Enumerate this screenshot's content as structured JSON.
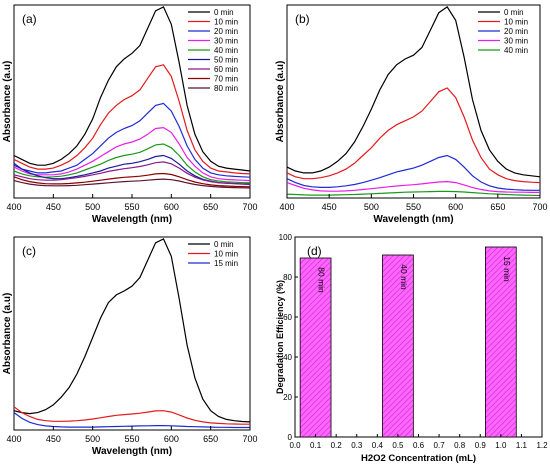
{
  "chart_data": [
    {
      "panel_label": "(a)",
      "type": "line",
      "xlabel": "Wavelength (nm)",
      "ylabel": "Absorbance (a.u)",
      "xlim": [
        400,
        700
      ],
      "x_ticks": [
        400,
        450,
        500,
        550,
        600,
        650,
        700
      ],
      "ylim": [
        0,
        1
      ],
      "y_ticks_shown": false,
      "legend_position": "top-right",
      "x": [
        400,
        410,
        420,
        430,
        440,
        450,
        460,
        470,
        480,
        490,
        500,
        510,
        520,
        530,
        540,
        550,
        560,
        570,
        580,
        590,
        600,
        610,
        620,
        630,
        640,
        650,
        660,
        670,
        680,
        690,
        700
      ],
      "series": [
        {
          "name": "0 min",
          "color": "#000000",
          "values": [
            0.22,
            0.2,
            0.18,
            0.17,
            0.17,
            0.18,
            0.2,
            0.23,
            0.27,
            0.33,
            0.41,
            0.52,
            0.61,
            0.68,
            0.72,
            0.75,
            0.79,
            0.88,
            0.97,
            0.99,
            0.9,
            0.7,
            0.48,
            0.33,
            0.24,
            0.19,
            0.165,
            0.155,
            0.15,
            0.145,
            0.14
          ]
        },
        {
          "name": "10 min",
          "color": "#e41a1c",
          "values": [
            0.2,
            0.18,
            0.16,
            0.15,
            0.15,
            0.155,
            0.17,
            0.19,
            0.22,
            0.26,
            0.31,
            0.38,
            0.44,
            0.48,
            0.51,
            0.53,
            0.56,
            0.62,
            0.68,
            0.69,
            0.63,
            0.5,
            0.35,
            0.25,
            0.19,
            0.155,
            0.14,
            0.135,
            0.13,
            0.127,
            0.125
          ]
        },
        {
          "name": "20 min",
          "color": "#1f2bd6",
          "values": [
            0.17,
            0.15,
            0.14,
            0.13,
            0.13,
            0.135,
            0.14,
            0.155,
            0.17,
            0.2,
            0.23,
            0.27,
            0.31,
            0.34,
            0.36,
            0.375,
            0.4,
            0.44,
            0.48,
            0.49,
            0.45,
            0.37,
            0.27,
            0.2,
            0.155,
            0.13,
            0.12,
            0.115,
            0.112,
            0.11,
            0.108
          ]
        },
        {
          "name": "30 min",
          "color": "#e81ee8",
          "values": [
            0.16,
            0.14,
            0.125,
            0.12,
            0.12,
            0.12,
            0.125,
            0.135,
            0.15,
            0.17,
            0.19,
            0.215,
            0.24,
            0.265,
            0.28,
            0.29,
            0.305,
            0.33,
            0.36,
            0.365,
            0.34,
            0.28,
            0.21,
            0.165,
            0.13,
            0.11,
            0.1,
            0.096,
            0.094,
            0.092,
            0.09
          ]
        },
        {
          "name": "40 min",
          "color": "#1a9a1a",
          "values": [
            0.14,
            0.125,
            0.115,
            0.11,
            0.108,
            0.11,
            0.113,
            0.12,
            0.13,
            0.145,
            0.16,
            0.175,
            0.195,
            0.21,
            0.22,
            0.227,
            0.237,
            0.255,
            0.275,
            0.28,
            0.26,
            0.22,
            0.17,
            0.135,
            0.11,
            0.095,
            0.088,
            0.084,
            0.082,
            0.08,
            0.078
          ]
        },
        {
          "name": "50 min",
          "color": "#1a1aa0",
          "values": [
            0.18,
            0.15,
            0.13,
            0.115,
            0.105,
            0.1,
            0.1,
            0.105,
            0.112,
            0.12,
            0.13,
            0.14,
            0.155,
            0.165,
            0.175,
            0.18,
            0.188,
            0.2,
            0.215,
            0.22,
            0.205,
            0.175,
            0.14,
            0.115,
            0.097,
            0.087,
            0.08,
            0.077,
            0.075,
            0.073,
            0.072
          ]
        },
        {
          "name": "60 min",
          "color": "#8a1a8a",
          "values": [
            0.12,
            0.11,
            0.1,
            0.095,
            0.092,
            0.093,
            0.095,
            0.1,
            0.105,
            0.112,
            0.12,
            0.128,
            0.138,
            0.145,
            0.152,
            0.157,
            0.163,
            0.172,
            0.183,
            0.187,
            0.177,
            0.155,
            0.128,
            0.108,
            0.094,
            0.085,
            0.079,
            0.076,
            0.074,
            0.072,
            0.07
          ]
        },
        {
          "name": "70 min",
          "color": "#8b0000",
          "values": [
            0.11,
            0.095,
            0.085,
            0.078,
            0.074,
            0.073,
            0.073,
            0.075,
            0.078,
            0.082,
            0.087,
            0.092,
            0.098,
            0.103,
            0.107,
            0.11,
            0.113,
            0.118,
            0.125,
            0.127,
            0.122,
            0.11,
            0.095,
            0.083,
            0.074,
            0.068,
            0.064,
            0.062,
            0.06,
            0.059,
            0.058
          ]
        },
        {
          "name": "80 min",
          "color": "#5a1530",
          "values": [
            0.09,
            0.08,
            0.072,
            0.067,
            0.064,
            0.063,
            0.063,
            0.064,
            0.066,
            0.069,
            0.072,
            0.075,
            0.079,
            0.082,
            0.085,
            0.087,
            0.089,
            0.092,
            0.096,
            0.098,
            0.095,
            0.088,
            0.078,
            0.07,
            0.064,
            0.06,
            0.057,
            0.055,
            0.054,
            0.053,
            0.052
          ]
        }
      ]
    },
    {
      "panel_label": "(b)",
      "type": "line",
      "xlabel": "Wavelength (nm)",
      "ylabel": "Absorbance (a.u)",
      "xlim": [
        400,
        700
      ],
      "x_ticks": [
        400,
        450,
        500,
        550,
        600,
        650,
        700
      ],
      "ylim": [
        0,
        1
      ],
      "y_ticks_shown": false,
      "legend_position": "top-right",
      "x": [
        400,
        410,
        420,
        430,
        440,
        450,
        460,
        470,
        480,
        490,
        500,
        510,
        520,
        530,
        540,
        550,
        560,
        570,
        580,
        590,
        600,
        610,
        620,
        630,
        640,
        650,
        660,
        670,
        680,
        690,
        700
      ],
      "series": [
        {
          "name": "0 min",
          "color": "#000000",
          "values": [
            0.16,
            0.14,
            0.13,
            0.13,
            0.14,
            0.16,
            0.19,
            0.23,
            0.29,
            0.37,
            0.46,
            0.56,
            0.64,
            0.69,
            0.72,
            0.74,
            0.78,
            0.87,
            0.96,
            0.99,
            0.92,
            0.73,
            0.51,
            0.35,
            0.25,
            0.19,
            0.15,
            0.13,
            0.12,
            0.115,
            0.11
          ]
        },
        {
          "name": "10 min",
          "color": "#e41a1c",
          "values": [
            0.13,
            0.11,
            0.1,
            0.1,
            0.105,
            0.115,
            0.13,
            0.15,
            0.18,
            0.22,
            0.26,
            0.31,
            0.35,
            0.38,
            0.4,
            0.42,
            0.45,
            0.5,
            0.55,
            0.57,
            0.52,
            0.42,
            0.3,
            0.21,
            0.15,
            0.12,
            0.1,
            0.09,
            0.085,
            0.082,
            0.08
          ]
        },
        {
          "name": "20 min",
          "color": "#1f2bd6",
          "values": [
            0.1,
            0.08,
            0.065,
            0.058,
            0.055,
            0.055,
            0.058,
            0.063,
            0.07,
            0.08,
            0.092,
            0.105,
            0.12,
            0.135,
            0.145,
            0.155,
            0.17,
            0.19,
            0.21,
            0.22,
            0.2,
            0.16,
            0.115,
            0.083,
            0.063,
            0.052,
            0.046,
            0.043,
            0.041,
            0.04,
            0.04
          ]
        },
        {
          "name": "30 min",
          "color": "#e81ee8",
          "values": [
            0.08,
            0.065,
            0.05,
            0.042,
            0.037,
            0.035,
            0.035,
            0.037,
            0.04,
            0.044,
            0.048,
            0.053,
            0.058,
            0.062,
            0.066,
            0.069,
            0.073,
            0.078,
            0.083,
            0.085,
            0.08,
            0.068,
            0.054,
            0.044,
            0.037,
            0.033,
            0.031,
            0.03,
            0.03,
            0.029,
            0.029
          ]
        },
        {
          "name": "40 min",
          "color": "#1a9a1a",
          "values": [
            0.02,
            0.018,
            0.016,
            0.015,
            0.015,
            0.015,
            0.016,
            0.017,
            0.018,
            0.02,
            0.022,
            0.024,
            0.026,
            0.028,
            0.03,
            0.031,
            0.032,
            0.033,
            0.034,
            0.034,
            0.033,
            0.031,
            0.028,
            0.025,
            0.022,
            0.02,
            0.018,
            0.016,
            0.015,
            0.014,
            0.013
          ]
        }
      ]
    },
    {
      "panel_label": "(c)",
      "type": "line",
      "xlabel": "Wavelength (nm)",
      "ylabel": "Absorbance (a.u)",
      "xlim": [
        400,
        700
      ],
      "x_ticks": [
        400,
        450,
        500,
        550,
        600,
        650,
        700
      ],
      "ylim": [
        0,
        1
      ],
      "y_ticks_shown": false,
      "legend_position": "top-right",
      "x": [
        400,
        410,
        420,
        430,
        440,
        450,
        460,
        470,
        480,
        490,
        500,
        510,
        520,
        530,
        540,
        550,
        560,
        570,
        580,
        590,
        600,
        610,
        620,
        630,
        640,
        650,
        660,
        670,
        680,
        690,
        700
      ],
      "series": [
        {
          "name": "0 min",
          "color": "#000000",
          "values": [
            0.1,
            0.09,
            0.085,
            0.09,
            0.105,
            0.13,
            0.17,
            0.22,
            0.29,
            0.38,
            0.48,
            0.58,
            0.66,
            0.7,
            0.72,
            0.745,
            0.79,
            0.88,
            0.97,
            0.99,
            0.9,
            0.68,
            0.44,
            0.27,
            0.16,
            0.1,
            0.07,
            0.055,
            0.048,
            0.044,
            0.042
          ]
        },
        {
          "name": "10 min",
          "color": "#e41a1c",
          "values": [
            0.12,
            0.09,
            0.07,
            0.055,
            0.048,
            0.045,
            0.045,
            0.046,
            0.048,
            0.052,
            0.057,
            0.063,
            0.07,
            0.076,
            0.08,
            0.083,
            0.087,
            0.093,
            0.099,
            0.1,
            0.093,
            0.078,
            0.062,
            0.05,
            0.042,
            0.037,
            0.034,
            0.032,
            0.031,
            0.03,
            0.03
          ]
        },
        {
          "name": "15 min",
          "color": "#1f2bd6",
          "values": [
            0.09,
            0.06,
            0.04,
            0.028,
            0.021,
            0.018,
            0.016,
            0.015,
            0.015,
            0.015,
            0.015,
            0.016,
            0.017,
            0.018,
            0.019,
            0.02,
            0.021,
            0.022,
            0.023,
            0.023,
            0.022,
            0.02,
            0.018,
            0.017,
            0.016,
            0.015,
            0.014,
            0.014,
            0.013,
            0.013,
            0.013
          ]
        }
      ]
    },
    {
      "panel_label": "(d)",
      "type": "bar",
      "xlabel": "H2O2 Concentration (mL)",
      "ylabel": "Degradation Efficiency (%)",
      "xlim": [
        0.0,
        1.2
      ],
      "x_ticks": [
        "0.0",
        "0.1",
        "0.2",
        "0.3",
        "0.4",
        "0.5",
        "0.6",
        "0.7",
        "0.8",
        "0.9",
        "1.0",
        "1.1",
        "1.2"
      ],
      "ylim": [
        0,
        100
      ],
      "y_ticks": [
        0,
        20,
        40,
        60,
        80,
        100
      ],
      "bar_width": 0.15,
      "bar_color": "#ff66ff",
      "x": [
        0.1,
        0.5,
        1.0
      ],
      "values": [
        89.5,
        91,
        95
      ],
      "bar_labels": [
        "80 min",
        "40 min",
        "15 min"
      ]
    }
  ]
}
